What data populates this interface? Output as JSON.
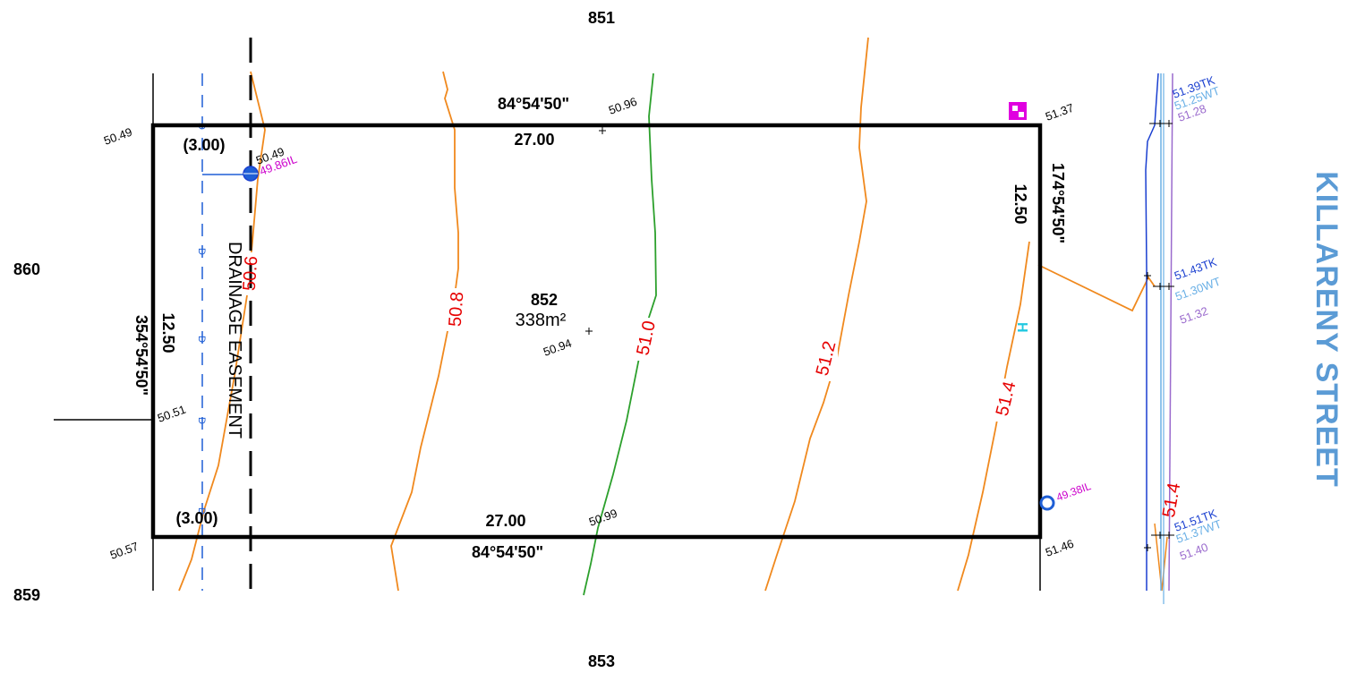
{
  "colors": {
    "boundary": "#000000",
    "contour_orange": "#f0891e",
    "contour_green": "#2ca02c",
    "contour_label": "#e60000",
    "drainage": "#1f5fd6",
    "invert_level": "#cc00cc",
    "kerb_blue": "#1a3fd0",
    "kerb_lightblue": "#6ab0e6",
    "kerb_purple": "#9a6acd",
    "street_label": "#5b9bd5"
  },
  "lots": {
    "north": "851",
    "west": "860",
    "south_west": "859",
    "south": "853",
    "subject_number": "852",
    "subject_area": "338m²"
  },
  "street_name": "KILLARENY STREET",
  "easement_label": "DRAINAGE EASEMENT",
  "dimensions": {
    "top_bearing": "84°54'50\"",
    "top_length": "27.00",
    "bottom_bearing": "84°54'50\"",
    "bottom_length": "27.00",
    "left_bearing": "354°54'50\"",
    "left_length": "12.50",
    "right_bearing": "174°54'50\"",
    "right_length": "12.50",
    "easement_width_top": "(3.00)",
    "easement_width_bottom": "(3.00)"
  },
  "spot_levels": {
    "top_left_corner": "50.49",
    "top_right_corner": "51.37",
    "bottom_left_corner": "50.57",
    "bottom_right_corner": "51.46",
    "top_mid": "50.96",
    "bottom_mid": "50.99",
    "centre": "50.94",
    "left_mid": "50.51",
    "pit": "50.49",
    "pit_invert": "49.86IL",
    "manhole_invert": "49.38IL"
  },
  "contours": {
    "c506": "50.6",
    "c508": "50.8",
    "c510": "51.0",
    "c512": "51.2",
    "c514": "51.4",
    "c514_kerb": "51.4"
  },
  "kerb_levels": {
    "top_tk": "51.39TK",
    "top_wt": "51.25WT",
    "top_lvl": "51.28",
    "mid_tk": "51.43TK",
    "mid_wt": "51.30WT",
    "mid_lvl": "51.32",
    "bot_tk": "51.51TK",
    "bot_wt": "51.37WT",
    "bot_lvl": "51.40"
  },
  "drain_symbol": "D",
  "hydrant_symbol": "H"
}
